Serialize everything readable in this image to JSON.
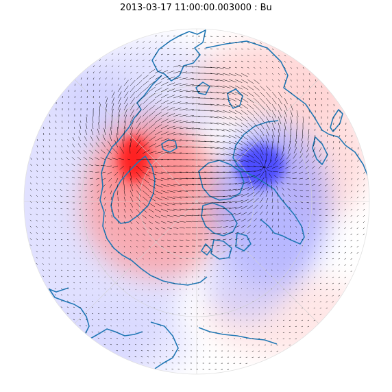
{
  "title": "2013-03-17 11:00:00.003000 : Bu",
  "map": {
    "projection": "north-polar-stereographic",
    "variable": "Bu",
    "colormap": "bwr",
    "color_low": "#0000ff",
    "color_mid": "#ffffff",
    "color_high": "#ff0000",
    "coastline_color": "#1f77b4",
    "vector_color": "#000000",
    "gridline_color": "#d0d0d0",
    "anomalies": [
      {
        "sign": "positive",
        "label": "red maximum over Greenland / Baffin Bay region",
        "strength": 1.0
      },
      {
        "sign": "positive",
        "label": "broad red region over Canadian Arctic / Greenland",
        "strength": 0.45
      },
      {
        "sign": "positive",
        "label": "weak red band over North Atlantic / Europe",
        "strength": 0.2
      },
      {
        "sign": "negative",
        "label": "blue minimum over Hudson Bay / central Canada",
        "strength": 0.9
      },
      {
        "sign": "negative",
        "label": "blue region over western Canada",
        "strength": 0.45
      },
      {
        "sign": "negative",
        "label": "weak blue region over Siberia / Pacific",
        "strength": 0.15
      }
    ]
  }
}
